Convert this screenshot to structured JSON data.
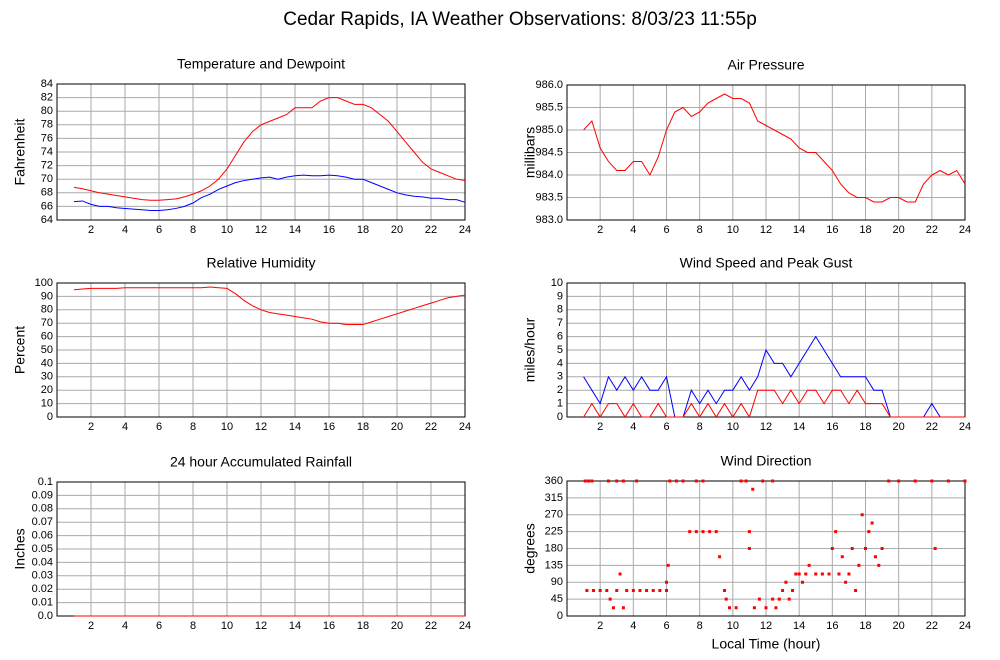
{
  "title": "Cedar Rapids, IA Weather Observations: 8/03/23 11:55p",
  "chart_data": [
    {
      "type": "line",
      "title": "Temperature and Dewpoint",
      "ylabel": "Fahrenheit",
      "xlim": [
        0,
        24
      ],
      "xticks": [
        2,
        4,
        6,
        8,
        10,
        12,
        14,
        16,
        18,
        20,
        22,
        24
      ],
      "ylim": [
        64,
        84
      ],
      "yticks": [
        64,
        66,
        68,
        70,
        72,
        74,
        76,
        78,
        80,
        82,
        84
      ],
      "grid": true,
      "x": [
        1,
        1.5,
        2,
        2.5,
        3,
        3.5,
        4,
        4.5,
        5,
        5.5,
        6,
        6.5,
        7,
        7.5,
        8,
        8.5,
        9,
        9.5,
        10,
        10.5,
        11,
        11.5,
        12,
        12.5,
        13,
        13.5,
        14,
        14.5,
        15,
        15.5,
        16,
        16.5,
        17,
        17.5,
        18,
        18.5,
        19,
        19.5,
        20,
        20.5,
        21,
        21.5,
        22,
        22.5,
        23,
        23.5,
        24
      ],
      "series": [
        {
          "color": "#ff0000",
          "values": [
            68.8,
            68.6,
            68.3,
            68,
            67.8,
            67.6,
            67.4,
            67.2,
            67,
            66.9,
            66.9,
            67,
            67.1,
            67.4,
            67.8,
            68.3,
            69,
            70,
            71.5,
            73.5,
            75.5,
            77,
            78,
            78.5,
            79,
            79.5,
            80.5,
            80.5,
            80.5,
            81.5,
            82,
            82,
            81.5,
            81,
            81,
            80.5,
            79.5,
            78.5,
            77,
            75.5,
            74,
            72.5,
            71.5,
            71,
            70.5,
            70,
            69.8
          ]
        },
        {
          "color": "#0000ff",
          "values": [
            66.7,
            66.8,
            66.3,
            66,
            66,
            65.8,
            65.7,
            65.6,
            65.5,
            65.4,
            65.4,
            65.5,
            65.7,
            66,
            66.5,
            67.3,
            67.8,
            68.5,
            69,
            69.5,
            69.8,
            70,
            70.2,
            70.3,
            70,
            70.3,
            70.5,
            70.6,
            70.5,
            70.5,
            70.6,
            70.5,
            70.3,
            70,
            70,
            69.5,
            69,
            68.5,
            68,
            67.7,
            67.5,
            67.4,
            67.2,
            67.2,
            67,
            67,
            66.6
          ]
        }
      ]
    },
    {
      "type": "line",
      "title": "Air Pressure",
      "ylabel": "millibars",
      "xlim": [
        0,
        24
      ],
      "xticks": [
        2,
        4,
        6,
        8,
        10,
        12,
        14,
        16,
        18,
        20,
        22,
        24
      ],
      "ylim": [
        983,
        986
      ],
      "yticks": [
        {
          "value": 983,
          "label": "983.0"
        },
        {
          "value": 983.5,
          "label": "983.5"
        },
        {
          "value": 984,
          "label": "984.0"
        },
        {
          "value": 984.5,
          "label": "984.5"
        },
        {
          "value": 985,
          "label": "985.0"
        },
        {
          "value": 985.5,
          "label": "985.5"
        },
        {
          "value": 986,
          "label": "986.0"
        }
      ],
      "grid": true,
      "x": [
        1,
        1.5,
        2,
        2.5,
        3,
        3.5,
        4,
        4.5,
        5,
        5.5,
        6,
        6.5,
        7,
        7.5,
        8,
        8.5,
        9,
        9.5,
        10,
        10.5,
        11,
        11.5,
        12,
        12.5,
        13,
        13.5,
        14,
        14.5,
        15,
        15.5,
        16,
        16.5,
        17,
        17.5,
        18,
        18.5,
        19,
        19.5,
        20,
        20.5,
        21,
        21.5,
        22,
        22.5,
        23,
        23.5,
        24
      ],
      "series": [
        {
          "color": "#ff0000",
          "values": [
            985.0,
            985.2,
            984.6,
            984.3,
            984.1,
            984.1,
            984.3,
            984.3,
            984.0,
            984.4,
            985.0,
            985.4,
            985.5,
            985.3,
            985.4,
            985.6,
            985.7,
            985.8,
            985.7,
            985.7,
            985.6,
            985.2,
            985.1,
            985.0,
            984.9,
            984.8,
            984.6,
            984.5,
            984.5,
            984.3,
            984.1,
            983.8,
            983.6,
            983.5,
            983.5,
            983.4,
            983.4,
            983.5,
            983.5,
            983.4,
            983.4,
            983.8,
            984.0,
            984.1,
            984.0,
            984.1,
            983.8
          ]
        }
      ]
    },
    {
      "type": "line",
      "title": "Relative Humidity",
      "ylabel": "Percent",
      "xlim": [
        0,
        24
      ],
      "xticks": [
        2,
        4,
        6,
        8,
        10,
        12,
        14,
        16,
        18,
        20,
        22,
        24
      ],
      "ylim": [
        0,
        100
      ],
      "yticks": [
        0,
        10,
        20,
        30,
        40,
        50,
        60,
        70,
        80,
        90,
        100
      ],
      "grid": true,
      "x": [
        1,
        1.5,
        2,
        2.5,
        3,
        3.5,
        4,
        4.5,
        5,
        5.5,
        6,
        6.5,
        7,
        7.5,
        8,
        8.5,
        9,
        9.5,
        10,
        10.5,
        11,
        11.5,
        12,
        12.5,
        13,
        13.5,
        14,
        14.5,
        15,
        15.5,
        16,
        16.5,
        17,
        17.5,
        18,
        18.5,
        19,
        19.5,
        20,
        20.5,
        21,
        21.5,
        22,
        22.5,
        23,
        23.5,
        24
      ],
      "series": [
        {
          "color": "#ff0000",
          "values": [
            95,
            95.5,
            96,
            96,
            96,
            96,
            96.5,
            96.5,
            96.5,
            96.5,
            96.5,
            96.5,
            96.5,
            96.5,
            96.5,
            96.5,
            97,
            96.5,
            96,
            92,
            87,
            83,
            80,
            78,
            77,
            76,
            75,
            74,
            73,
            71,
            70,
            70,
            69,
            69,
            69,
            71,
            73,
            75,
            77,
            79,
            81,
            83,
            85,
            87,
            89,
            90,
            91
          ]
        }
      ]
    },
    {
      "type": "line",
      "title": "Wind Speed and Peak Gust",
      "ylabel": "miles/hour",
      "xlim": [
        0,
        24
      ],
      "xticks": [
        2,
        4,
        6,
        8,
        10,
        12,
        14,
        16,
        18,
        20,
        22,
        24
      ],
      "ylim": [
        0,
        10
      ],
      "yticks": [
        0,
        1,
        2,
        3,
        4,
        5,
        6,
        7,
        8,
        9,
        10
      ],
      "grid": true,
      "x": [
        1,
        1.5,
        2,
        2.5,
        3,
        3.5,
        4,
        4.5,
        5,
        5.5,
        6,
        6.5,
        7,
        7.5,
        8,
        8.5,
        9,
        9.5,
        10,
        10.5,
        11,
        11.5,
        12,
        12.5,
        13,
        13.5,
        14,
        14.5,
        15,
        15.5,
        16,
        16.5,
        17,
        17.5,
        18,
        18.5,
        19,
        19.5,
        20,
        20.5,
        21,
        21.5,
        22,
        22.5,
        23,
        23.5,
        24
      ],
      "series": [
        {
          "color": "#0000ff",
          "values": [
            3,
            2,
            1,
            3,
            2,
            3,
            2,
            3,
            2,
            2,
            3,
            0,
            0,
            2,
            1,
            2,
            1,
            2,
            2,
            3,
            2,
            3,
            5,
            4,
            4,
            3,
            4,
            5,
            6,
            5,
            4,
            3,
            3,
            3,
            3,
            2,
            2,
            0,
            0,
            0,
            0,
            0,
            1,
            0,
            0,
            0,
            0
          ]
        },
        {
          "color": "#ff0000",
          "values": [
            0,
            1,
            0,
            1,
            1,
            0,
            1,
            0,
            0,
            1,
            0,
            0,
            0,
            1,
            0,
            1,
            0,
            1,
            0,
            1,
            0,
            2,
            2,
            2,
            1,
            2,
            1,
            2,
            2,
            1,
            2,
            2,
            1,
            2,
            1,
            1,
            1,
            0,
            0,
            0,
            0,
            0,
            0,
            0,
            0,
            0,
            0
          ]
        }
      ]
    },
    {
      "type": "line",
      "title": "24 hour Accumulated Rainfall",
      "ylabel": "Inches",
      "xlim": [
        0,
        24
      ],
      "xticks": [
        2,
        4,
        6,
        8,
        10,
        12,
        14,
        16,
        18,
        20,
        22,
        24
      ],
      "ylim": [
        0,
        0.1
      ],
      "yticks": [
        {
          "value": 0,
          "label": "0.0"
        },
        0.01,
        0.02,
        0.03,
        0.04,
        0.05,
        0.06,
        0.07,
        0.08,
        0.09,
        0.1
      ],
      "grid": true,
      "x": [
        1,
        24
      ],
      "series": [
        {
          "color": "#ff0000",
          "values": [
            0,
            0
          ]
        }
      ]
    },
    {
      "type": "scatter",
      "title": "Wind Direction",
      "ylabel": "degrees",
      "xlabel": "Local Time (hour)",
      "xlim": [
        0,
        24
      ],
      "xticks": [
        2,
        4,
        6,
        8,
        10,
        12,
        14,
        16,
        18,
        20,
        22,
        24
      ],
      "ylim": [
        0,
        360
      ],
      "yticks": [
        0,
        45,
        90,
        135,
        180,
        225,
        270,
        315,
        360
      ],
      "grid": true,
      "color": "#ff0000",
      "x": [
        1.1,
        1.3,
        1.5,
        1.2,
        1.6,
        2.0,
        2.4,
        2.6,
        2.8,
        3.0,
        3.2,
        3.4,
        3.6,
        2.5,
        3.0,
        3.4,
        4.0,
        4.4,
        4.8,
        5.2,
        5.6,
        6.0,
        6.0,
        6.1,
        4.2,
        6.2,
        6.6,
        7.0,
        7.4,
        7.8,
        8.2,
        8.6,
        9.0,
        7.8,
        8.2,
        9.2,
        9.5,
        9.6,
        9.8,
        10.2,
        10.5,
        10.8,
        11.0,
        11.0,
        11.2,
        11.3,
        11.6,
        12.0,
        12.4,
        12.6,
        12.8,
        11.8,
        12.4,
        13.0,
        13.2,
        13.4,
        13.6,
        13.8,
        14.0,
        14.2,
        14.4,
        14.6,
        15.0,
        15.4,
        15.8,
        16.0,
        16.2,
        16.4,
        16.6,
        16.8,
        17.0,
        17.2,
        17.4,
        17.6,
        17.8,
        18.0,
        18.2,
        18.4,
        18.6,
        18.8,
        19.0,
        19.4,
        20.0,
        21.0,
        22.0,
        22.2,
        23.0,
        24.0
      ],
      "values": [
        360,
        360,
        360,
        68,
        68,
        68,
        68,
        45,
        22,
        68,
        112,
        22,
        68,
        360,
        360,
        360,
        68,
        68,
        68,
        68,
        68,
        68,
        90,
        135,
        360,
        360,
        360,
        360,
        225,
        225,
        225,
        225,
        225,
        360,
        360,
        158,
        68,
        45,
        22,
        22,
        360,
        360,
        180,
        225,
        338,
        22,
        45,
        22,
        45,
        22,
        45,
        360,
        360,
        68,
        90,
        45,
        68,
        112,
        112,
        90,
        112,
        135,
        112,
        112,
        112,
        180,
        225,
        112,
        158,
        90,
        112,
        180,
        68,
        135,
        270,
        180,
        225,
        248,
        158,
        135,
        180,
        360,
        360,
        360,
        360,
        180,
        360,
        360
      ]
    }
  ]
}
